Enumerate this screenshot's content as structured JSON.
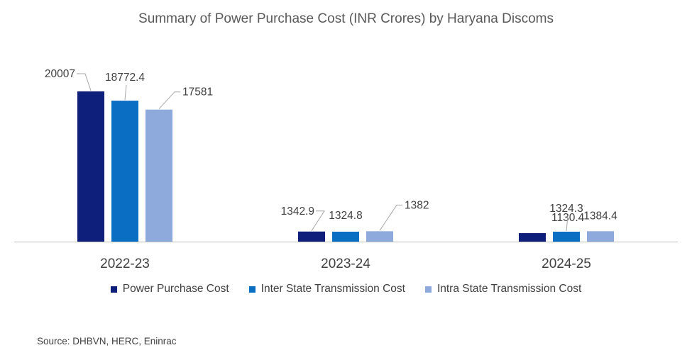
{
  "chart_data": {
    "type": "bar",
    "title": "Summary of Power Purchase Cost (INR Crores) by Haryana Discoms",
    "categories": [
      "2022-23",
      "2023-24",
      "2024-25"
    ],
    "series": [
      {
        "name": "Power Purchase Cost",
        "color": "#0d1f7b",
        "values": [
          20007,
          1342.9,
          1130.4
        ],
        "labels": [
          "20007",
          "1342.9",
          "1130.4"
        ]
      },
      {
        "name": "Inter State Transmission Cost",
        "color": "#0a6fc2",
        "values": [
          18772.4,
          1324.8,
          1324.3
        ],
        "labels": [
          "18772.4",
          "1324.8",
          "1324.3"
        ]
      },
      {
        "name": "Intra State Transmission Cost",
        "color": "#8eaadc",
        "values": [
          17581,
          1382,
          1384.4
        ],
        "labels": [
          "17581",
          "1382",
          "1384.4"
        ]
      }
    ],
    "ylim": [
      0,
      20007
    ],
    "grid": false,
    "legend_position": "bottom",
    "source": "Source: DHBVN, HERC, Eninrac"
  }
}
